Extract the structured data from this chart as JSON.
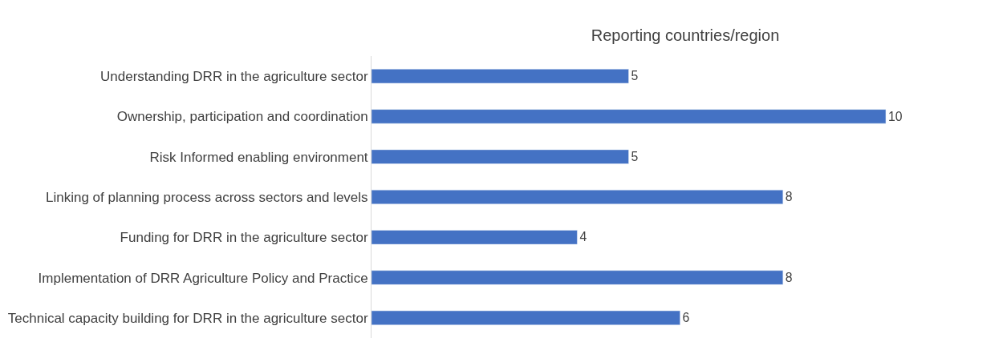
{
  "chart_data": {
    "type": "bar",
    "orientation": "horizontal",
    "title": "Reporting countries/region",
    "categories": [
      "Understanding DRR in the agriculture sector",
      "Ownership, participation and coordination",
      "Risk Informed enabling environment",
      "Linking of planning process across sectors and levels",
      "Funding for DRR in the agriculture sector",
      "Implementation of DRR Agriculture Policy and Practice",
      "Technical capacity building for DRR in the agriculture sector"
    ],
    "values": [
      5,
      10,
      5,
      8,
      4,
      8,
      6
    ],
    "color": "#4472c4",
    "data_labels": true,
    "tick_labels": "y"
  }
}
